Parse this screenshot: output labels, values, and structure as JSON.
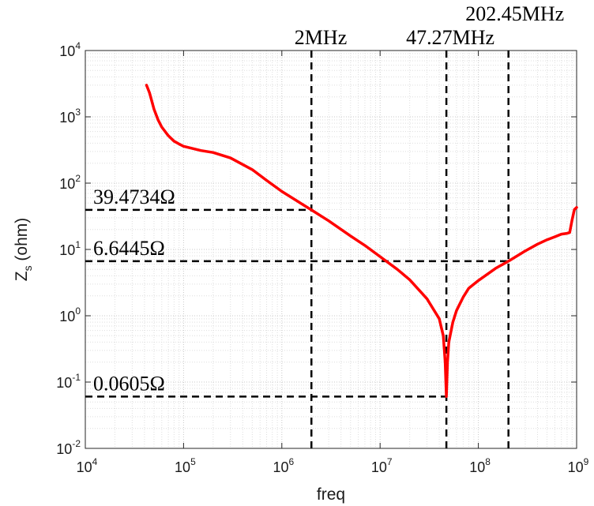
{
  "chart_data": {
    "type": "line",
    "xlabel": "freq",
    "ylabel": "Z",
    "ylabel_subscript": "s",
    "ylabel_unit": " (ohm)",
    "x_scale": "log",
    "y_scale": "log",
    "xlim": [
      10000,
      1000000000
    ],
    "ylim": [
      0.01,
      10000
    ],
    "grid": "on (major and minor, dotted)",
    "x_ticks": [
      {
        "base": "10",
        "exp": "4",
        "value": 10000
      },
      {
        "base": "10",
        "exp": "5",
        "value": 100000
      },
      {
        "base": "10",
        "exp": "6",
        "value": 1000000
      },
      {
        "base": "10",
        "exp": "7",
        "value": 10000000
      },
      {
        "base": "10",
        "exp": "8",
        "value": 100000000
      },
      {
        "base": "10",
        "exp": "9",
        "value": 1000000000
      }
    ],
    "y_ticks": [
      {
        "base": "10",
        "exp": "-2",
        "value": 0.01
      },
      {
        "base": "10",
        "exp": "-1",
        "value": 0.1
      },
      {
        "base": "10",
        "exp": "0",
        "value": 1
      },
      {
        "base": "10",
        "exp": "1",
        "value": 10
      },
      {
        "base": "10",
        "exp": "2",
        "value": 100
      },
      {
        "base": "10",
        "exp": "3",
        "value": 1000
      },
      {
        "base": "10",
        "exp": "4",
        "value": 10000
      }
    ],
    "series": [
      {
        "color": "#ff0000",
        "points": [
          [
            42000,
            3000
          ],
          [
            45000,
            2300
          ],
          [
            50000,
            1300
          ],
          [
            55000,
            900
          ],
          [
            60000,
            700
          ],
          [
            70000,
            520
          ],
          [
            80000,
            430
          ],
          [
            90000,
            390
          ],
          [
            100000,
            360
          ],
          [
            150000,
            310
          ],
          [
            200000,
            290
          ],
          [
            300000,
            240
          ],
          [
            500000,
            160
          ],
          [
            700000,
            110
          ],
          [
            1000000,
            75
          ],
          [
            2000000,
            39.47
          ],
          [
            3000000,
            27
          ],
          [
            5000000,
            16
          ],
          [
            7000000,
            11.5
          ],
          [
            10000000,
            7.8
          ],
          [
            15000000,
            5.0
          ],
          [
            20000000,
            3.5
          ],
          [
            30000000,
            1.8
          ],
          [
            40000000,
            0.9
          ],
          [
            44000000,
            0.5
          ],
          [
            46000000,
            0.2
          ],
          [
            47270000,
            0.0605
          ],
          [
            48500000,
            0.2
          ],
          [
            50000000,
            0.4
          ],
          [
            55000000,
            0.8
          ],
          [
            60000000,
            1.2
          ],
          [
            70000000,
            1.9
          ],
          [
            80000000,
            2.6
          ],
          [
            100000000,
            3.4
          ],
          [
            150000000,
            5.2
          ],
          [
            202450000,
            6.64
          ],
          [
            300000000,
            9.5
          ],
          [
            400000000,
            12
          ],
          [
            500000000,
            14
          ],
          [
            600000000,
            15.5
          ],
          [
            700000000,
            17
          ],
          [
            800000000,
            17.5
          ],
          [
            850000000,
            18
          ],
          [
            900000000,
            28
          ],
          [
            950000000,
            40
          ],
          [
            1000000000,
            43
          ]
        ]
      }
    ],
    "annotations": {
      "vertical": [
        {
          "x": 2000000,
          "label": "2MHz"
        },
        {
          "x": 47270000,
          "label": "47.27MHz"
        },
        {
          "x": 202450000,
          "label": "202.45MHz"
        }
      ],
      "horizontal": [
        {
          "y": 39.4734,
          "x_end": 2000000,
          "label": "39.4734Ω"
        },
        {
          "y": 6.6445,
          "x_end": 202450000,
          "label": "6.6445Ω"
        },
        {
          "y": 0.0605,
          "x_end": 47270000,
          "label": "0.0605Ω"
        }
      ]
    }
  }
}
